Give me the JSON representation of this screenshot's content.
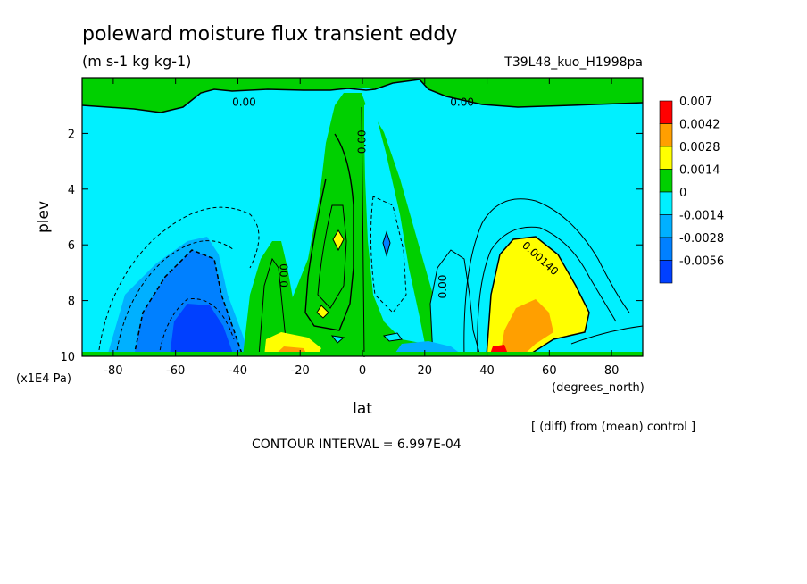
{
  "chart_data": {
    "type": "heatmap",
    "title": "poleward moisture flux transient eddy",
    "units": "(m s-1 kg kg-1)",
    "run_label": "T39L48_kuo_H1998pa",
    "xlabel": "lat",
    "x_units": "(degrees_north)",
    "ylabel": "plev",
    "y_units": "(x1E4 Pa)",
    "xlim": [
      -90,
      90
    ],
    "ylim": [
      0,
      10
    ],
    "y_inverted": true,
    "x_ticks": [
      "-80",
      "-60",
      "-40",
      "-20",
      "0",
      "20",
      "40",
      "60",
      "80"
    ],
    "y_ticks": [
      "2",
      "4",
      "6",
      "8",
      "10"
    ],
    "footnote": "[ (diff) from (mean) control ]",
    "contour_interval": "CONTOUR INTERVAL = 6.997E-04",
    "legend": {
      "position": "right",
      "labels": [
        "0.007",
        "0.0042",
        "0.0028",
        "0.0014",
        "0",
        "-0.0014",
        "-0.0028",
        "-0.0056"
      ],
      "colors": [
        "#ff0000",
        "#ff9f00",
        "#ffff00",
        "#00d000",
        "#00f0ff",
        "#00b0ff",
        "#0080ff",
        "#0040ff"
      ]
    },
    "contour_labels": [
      {
        "text": "0.00",
        "lat": -38,
        "plev": 0.9,
        "rotate": 0
      },
      {
        "text": "0.00",
        "lat": 32,
        "plev": 0.9,
        "rotate": 0
      },
      {
        "text": "0.00",
        "lat": 0,
        "plev": 2.3,
        "rotate": -90
      },
      {
        "text": "0.00",
        "lat": -25,
        "plev": 7.1,
        "rotate": -90
      },
      {
        "text": "0.00",
        "lat": 26,
        "plev": 7.5,
        "rotate": -90
      },
      {
        "text": "0.00140",
        "lat": 57,
        "plev": 6.5,
        "rotate": 42
      }
    ]
  }
}
